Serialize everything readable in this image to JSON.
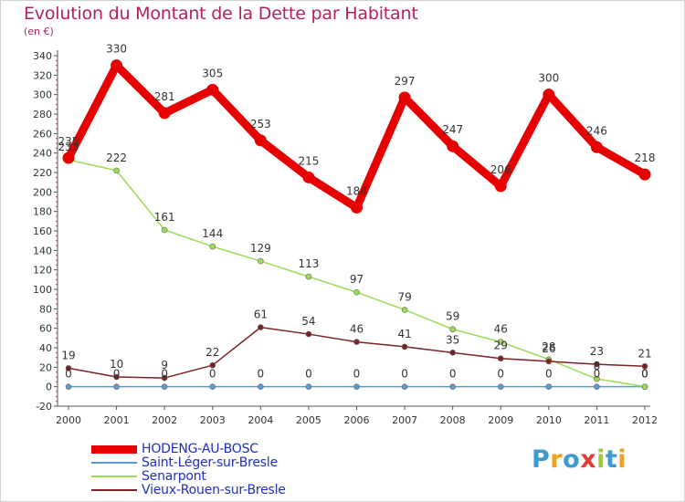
{
  "chart_data": {
    "type": "line",
    "title": "Evolution du Montant de la Dette par Habitant",
    "subtitle": "(en €)",
    "xlabel": "",
    "ylabel": "",
    "x": [
      2000,
      2001,
      2002,
      2003,
      2004,
      2005,
      2006,
      2007,
      2008,
      2009,
      2010,
      2011,
      2012
    ],
    "ylim": [
      -20,
      340
    ],
    "yticks": [
      -20,
      0,
      20,
      40,
      60,
      80,
      100,
      120,
      140,
      160,
      180,
      200,
      220,
      240,
      260,
      280,
      300,
      320,
      340
    ],
    "grid": false,
    "legend_position": "bottom-left",
    "series": [
      {
        "name": "HODENG-AU-BOSC",
        "color": "#e60000",
        "values": [
          235,
          330,
          281,
          305,
          253,
          215,
          184,
          297,
          247,
          206,
          300,
          246,
          218
        ]
      },
      {
        "name": "Saint-Léger-sur-Bresle",
        "color": "#5b9bd5",
        "values": [
          0,
          0,
          0,
          0,
          0,
          0,
          0,
          0,
          0,
          0,
          0,
          0,
          0
        ]
      },
      {
        "name": "Senarpont",
        "color": "#99dd55",
        "values": [
          233,
          222,
          161,
          144,
          129,
          113,
          97,
          79,
          59,
          46,
          28,
          8,
          0
        ]
      },
      {
        "name": "Vieux-Rouen-sur-Bresle",
        "color": "#7b2222",
        "values": [
          19,
          10,
          9,
          22,
          61,
          54,
          46,
          41,
          35,
          29,
          26,
          23,
          21
        ]
      }
    ]
  },
  "logo": {
    "text": "Proxiti",
    "letters": [
      "P",
      "r",
      "o",
      "x",
      "i",
      "t",
      "i"
    ],
    "colors": [
      "#3d9ad1",
      "#f0a020",
      "#3d9ad1",
      "#e23d3d",
      "#9acd32",
      "#3d9ad1",
      "#f0a020"
    ]
  }
}
